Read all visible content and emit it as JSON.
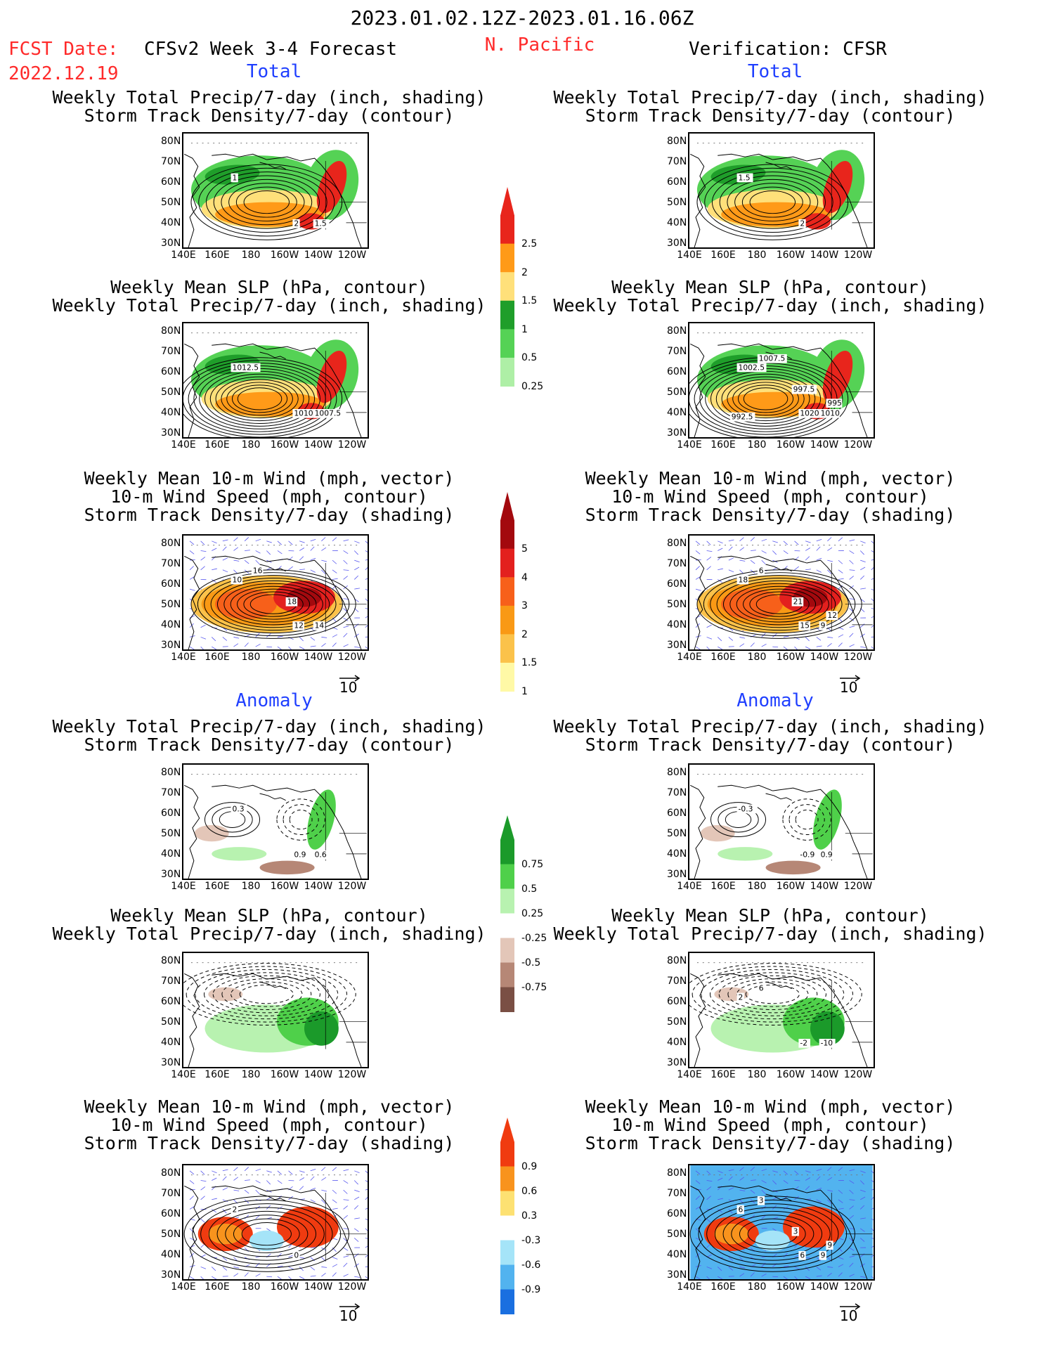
{
  "header": {
    "date_range": "2023.01.02.12Z-2023.01.16.06Z",
    "fcst_label": "FCST Date:",
    "fcst_date": "2022.12.19",
    "forecast_title": "CFSv2 Week 3-4 Forecast",
    "region": "N. Pacific",
    "verification_title": "Verification: CFSR"
  },
  "sections": {
    "total": "Total",
    "anomaly": "Anomaly"
  },
  "titles": {
    "precip_storm": [
      "Weekly Total Precip/7-day (inch, shading)",
      "Storm Track Density/7-day (contour)"
    ],
    "slp_precip": [
      "Weekly Mean SLP (hPa, contour)",
      "Weekly Total Precip/7-day (inch, shading)"
    ],
    "wind_storm": [
      "Weekly Mean 10-m Wind (mph, vector)",
      "10-m Wind Speed (mph, contour)",
      "Storm Track Density/7-day (shading)"
    ]
  },
  "axes": {
    "lat_ticks": [
      "80N",
      "70N",
      "60N",
      "50N",
      "40N",
      "30N"
    ],
    "lon_ticks": [
      "140E",
      "160E",
      "180",
      "160W",
      "140W",
      "120W"
    ]
  },
  "vector_ref": "10",
  "colorbars": {
    "precip_total": {
      "labels": [
        "2.5",
        "2",
        "1.5",
        "1",
        "0.5",
        "0.25"
      ],
      "colors": [
        "#e8251c",
        "#ff9a18",
        "#ffe07a",
        "#1f9e2a",
        "#55d255",
        "#aeefa6"
      ]
    },
    "storm_total": {
      "labels": [
        "5",
        "4",
        "3",
        "2",
        "1.5",
        "1"
      ],
      "colors": [
        "#a3090e",
        "#e3201e",
        "#f7601a",
        "#f99915",
        "#fbc24a",
        "#fff9a6"
      ]
    },
    "precip_anom": {
      "labels": [
        "0.75",
        "0.5",
        "0.25",
        "-0.25",
        "-0.5",
        "-0.75"
      ],
      "colors": [
        "#1b9a2a",
        "#4fd04a",
        "#b8f2b0",
        "#ffffff",
        "#e3c6b8",
        "#b68776",
        "#7a4f44"
      ]
    },
    "storm_anom": {
      "labels": [
        "0.9",
        "0.6",
        "0.3",
        "-0.3",
        "-0.6",
        "-0.9"
      ],
      "colors": [
        "#f03b10",
        "#f8931d",
        "#fde172",
        "#ffffff",
        "#a5e4f8",
        "#52b3ef",
        "#1a6fe0"
      ]
    },
    "storm_anom_top_label": "0.9"
  },
  "contour_labels": {
    "p1_left": [
      "1",
      "2",
      "1.5"
    ],
    "p1_right": [
      "1.5",
      "2"
    ],
    "p2_left": [
      "1012.5",
      "1010",
      "1007.5"
    ],
    "p2_right": [
      "1002.5",
      "1020",
      "1010",
      "1007.5",
      "997.5",
      "995",
      "992.5"
    ],
    "p3_left": [
      "10",
      "12",
      "14",
      "16",
      "18"
    ],
    "p3_right": [
      "18",
      "15",
      "9",
      "6",
      "21",
      "12"
    ],
    "p4_left": [
      "0.3",
      "0.9",
      "0.6"
    ],
    "p4_right": [
      "-0.3",
      "-0.9",
      "0.9"
    ],
    "p5_right": [
      "2",
      "-2",
      "-10",
      "6"
    ],
    "p6_left": [
      "2",
      "0"
    ],
    "p6_right": [
      "6",
      "6",
      "9",
      "3",
      "3",
      "9"
    ]
  }
}
